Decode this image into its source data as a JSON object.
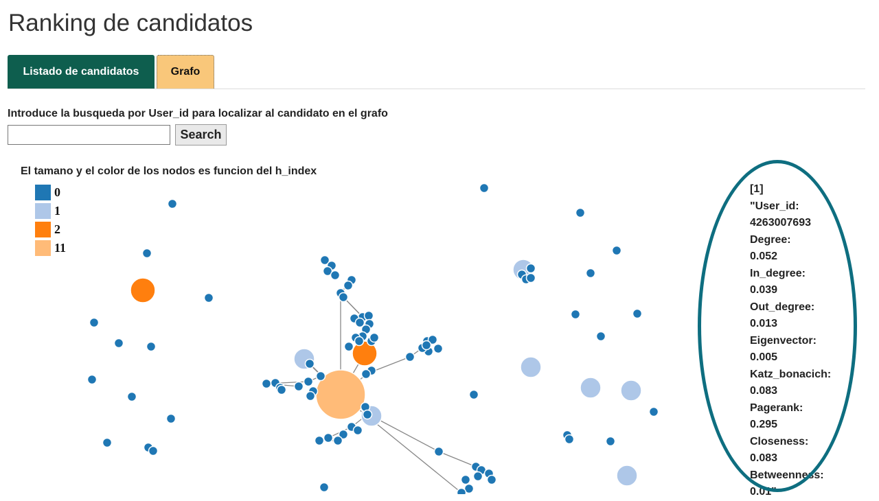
{
  "page": {
    "title": "Ranking de candidatos"
  },
  "tabs": [
    {
      "label": "Listado de candidatos",
      "active": false
    },
    {
      "label": "Grafo",
      "active": true
    }
  ],
  "search": {
    "label": "Introduce la busqueda por User_id para localizar al candidato en el grafo",
    "value": "",
    "placeholder": "",
    "button_label": "Search"
  },
  "graph": {
    "caption": "El tamano y el color de los nodos es funcion del h_index",
    "legend": [
      {
        "label": "0",
        "color": "#1f77b4"
      },
      {
        "label": "1",
        "color": "#aec7e8"
      },
      {
        "label": "2",
        "color": "#ff7f0e"
      },
      {
        "label": "11",
        "color": "#ffbb78"
      }
    ],
    "edge_color": "#888888",
    "node_stroke": "#ffffff"
  },
  "info_panel": {
    "lines": [
      "[1]",
      "\"User_id:",
      "4263007693",
      "Degree:",
      "0.052",
      "In_degree:",
      "0.039",
      "Out_degree:",
      "0.013",
      "Eigenvector:",
      "0.005",
      "Katz_bonacich:",
      "0.083",
      "Pagerank:",
      "0.295",
      "Closeness:",
      "0.083",
      "Betweenness:",
      "0.01\""
    ],
    "highlight_color": "#0e6e80"
  }
}
